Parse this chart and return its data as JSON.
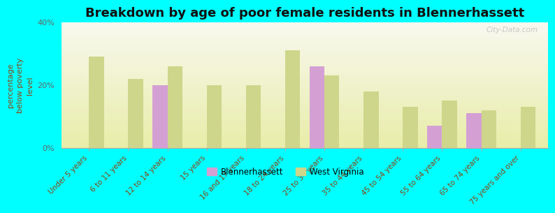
{
  "title": "Breakdown by age of poor female residents in Blennerhassett",
  "ylabel": "percentage\nbelow poverty\nlevel",
  "background_color": "#00FFFF",
  "plot_bg_top": "#f8f8f0",
  "plot_bg_bottom": "#e8eda8",
  "categories": [
    "Under 5 years",
    "6 to 11 years",
    "12 to 14 years",
    "15 years",
    "16 and 17 years",
    "18 to 24 years",
    "25 to 34 years",
    "35 to 44 years",
    "45 to 54 years",
    "55 to 64 years",
    "65 to 74 years",
    "75 years and over"
  ],
  "blennerhassett": [
    null,
    null,
    20.0,
    null,
    null,
    null,
    26.0,
    null,
    null,
    7.0,
    11.0,
    null
  ],
  "west_virginia": [
    29.0,
    22.0,
    26.0,
    20.0,
    20.0,
    31.0,
    23.0,
    18.0,
    13.0,
    15.0,
    12.0,
    13.0
  ],
  "color_blennerhassett": "#d4a0d4",
  "color_west_virginia": "#cdd68a",
  "ylim": [
    0,
    40
  ],
  "yticks": [
    0,
    20,
    40
  ],
  "ytick_labels": [
    "0%",
    "20%",
    "40%"
  ],
  "bar_width": 0.38,
  "legend_labels": [
    "Blennerhassett",
    "West Virginia"
  ],
  "watermark": "City-Data.com",
  "title_fontsize": 13,
  "axis_label_fontsize": 8,
  "tick_label_fontsize": 7.5
}
